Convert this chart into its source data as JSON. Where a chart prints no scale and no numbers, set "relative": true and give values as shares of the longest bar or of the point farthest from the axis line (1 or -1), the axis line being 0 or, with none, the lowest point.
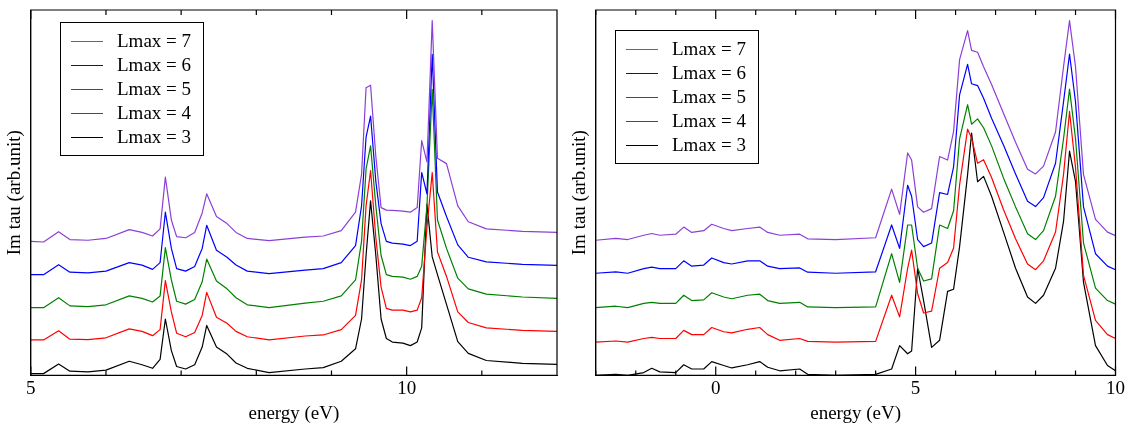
{
  "chart_data": [
    {
      "type": "line",
      "xlabel": "energy (eV)",
      "ylabel": "Im tau (arb.unit)",
      "relative": true,
      "legend": "top left",
      "xlim": [
        5,
        12
      ],
      "xticks": [
        5,
        {
          "value": 6,
          "label": null
        },
        {
          "value": 7,
          "label": null
        },
        {
          "value": 8,
          "label": null
        },
        {
          "value": 9,
          "label": null
        },
        10,
        {
          "value": 11,
          "label": null
        }
      ],
      "x": [
        5.0,
        5.17,
        5.37,
        5.52,
        5.76,
        6.0,
        6.31,
        6.48,
        6.62,
        6.72,
        6.79,
        6.87,
        6.94,
        7.06,
        7.18,
        7.28,
        7.34,
        7.47,
        7.61,
        7.73,
        7.88,
        8.17,
        8.65,
        8.89,
        9.13,
        9.32,
        9.4,
        9.46,
        9.52,
        9.59,
        9.66,
        9.73,
        9.81,
        9.95,
        10.05,
        10.14,
        10.2,
        10.27,
        10.34,
        10.41,
        10.53,
        10.68,
        10.82,
        11.06,
        11.54,
        12.0
      ],
      "series": [
        {
          "name": "Lmax = 7",
          "color": "#8c3fd6",
          "values": [
            0.378,
            0.376,
            0.405,
            0.383,
            0.381,
            0.386,
            0.411,
            0.403,
            0.393,
            0.413,
            0.559,
            0.438,
            0.391,
            0.388,
            0.403,
            0.458,
            0.512,
            0.448,
            0.428,
            0.403,
            0.386,
            0.38,
            0.39,
            0.393,
            0.408,
            0.46,
            0.567,
            0.811,
            0.818,
            0.617,
            0.473,
            0.466,
            0.465,
            0.463,
            0.46,
            0.473,
            0.662,
            0.602,
            1.0,
            0.612,
            0.597,
            0.478,
            0.433,
            0.413,
            0.406,
            0.403
          ]
        },
        {
          "name": "Lmax = 6",
          "color": "#0000ff",
          "values": [
            0.284,
            0.284,
            0.312,
            0.291,
            0.289,
            0.294,
            0.318,
            0.311,
            0.299,
            0.318,
            0.46,
            0.358,
            0.301,
            0.294,
            0.307,
            0.358,
            0.423,
            0.353,
            0.333,
            0.311,
            0.294,
            0.287,
            0.297,
            0.301,
            0.318,
            0.366,
            0.478,
            0.672,
            0.731,
            0.547,
            0.428,
            0.378,
            0.373,
            0.37,
            0.366,
            0.378,
            0.572,
            0.512,
            0.905,
            0.517,
            0.448,
            0.368,
            0.333,
            0.32,
            0.313,
            0.31
          ]
        },
        {
          "name": "Lmax = 5",
          "color": "#008000",
          "values": [
            0.191,
            0.191,
            0.219,
            0.196,
            0.194,
            0.199,
            0.224,
            0.217,
            0.207,
            0.224,
            0.36,
            0.269,
            0.209,
            0.201,
            0.214,
            0.264,
            0.328,
            0.266,
            0.244,
            0.219,
            0.199,
            0.191,
            0.204,
            0.209,
            0.224,
            0.269,
            0.378,
            0.582,
            0.647,
            0.478,
            0.338,
            0.284,
            0.279,
            0.277,
            0.271,
            0.279,
            0.308,
            0.478,
            0.806,
            0.438,
            0.358,
            0.274,
            0.244,
            0.229,
            0.221,
            0.217
          ]
        },
        {
          "name": "Lmax = 4",
          "color": "#ff0000",
          "values": [
            0.1,
            0.1,
            0.126,
            0.102,
            0.101,
            0.106,
            0.131,
            0.124,
            0.112,
            0.129,
            0.267,
            0.179,
            0.119,
            0.109,
            0.121,
            0.169,
            0.234,
            0.164,
            0.147,
            0.124,
            0.109,
            0.1,
            0.111,
            0.114,
            0.129,
            0.169,
            0.269,
            0.478,
            0.577,
            0.388,
            0.249,
            0.189,
            0.184,
            0.184,
            0.179,
            0.184,
            0.219,
            0.418,
            0.572,
            0.348,
            0.279,
            0.179,
            0.149,
            0.134,
            0.127,
            0.124
          ]
        },
        {
          "name": "Lmax = 3",
          "color": "#000000",
          "values": [
            0.005,
            0.005,
            0.032,
            0.012,
            0.01,
            0.015,
            0.04,
            0.03,
            0.02,
            0.045,
            0.159,
            0.07,
            0.025,
            0.018,
            0.03,
            0.08,
            0.141,
            0.08,
            0.06,
            0.035,
            0.02,
            0.008,
            0.018,
            0.022,
            0.04,
            0.075,
            0.159,
            0.338,
            0.492,
            0.338,
            0.159,
            0.104,
            0.094,
            0.091,
            0.084,
            0.094,
            0.134,
            0.483,
            0.334,
            0.284,
            0.2,
            0.095,
            0.062,
            0.042,
            0.034,
            0.031
          ]
        }
      ]
    },
    {
      "type": "line",
      "xlabel": "energy (eV)",
      "ylabel": "Im tau (arb.unit)",
      "relative": true,
      "legend": "top left",
      "xlim": [
        -3,
        10
      ],
      "xticks": [
        {
          "value": -3,
          "label": null
        },
        {
          "value": -2,
          "label": null
        },
        {
          "value": -1,
          "label": null
        },
        0,
        {
          "value": 1,
          "label": null
        },
        {
          "value": 2,
          "label": null
        },
        {
          "value": 3,
          "label": null
        },
        {
          "value": 4,
          "label": null
        },
        5,
        {
          "value": 6,
          "label": null
        },
        {
          "value": 7,
          "label": null
        },
        {
          "value": 8,
          "label": null
        },
        {
          "value": 9,
          "label": null
        },
        10
      ],
      "x": [
        -3,
        -2.5,
        -2.2,
        -1.8,
        -1.6,
        -1.4,
        -1.0,
        -0.8,
        -0.6,
        -0.3,
        -0.1,
        0.2,
        0.4,
        0.8,
        1.1,
        1.3,
        1.6,
        2.1,
        2.3,
        3.0,
        4.0,
        4.4,
        4.6,
        4.8,
        4.9,
        5.05,
        5.2,
        5.4,
        5.6,
        5.8,
        5.95,
        6.1,
        6.3,
        6.4,
        6.55,
        6.7,
        6.9,
        7.2,
        7.5,
        7.8,
        8.0,
        8.2,
        8.5,
        8.7,
        8.85,
        9.0,
        9.2,
        9.5,
        9.8,
        10
      ],
      "series": [
        {
          "name": "Lmax = 7",
          "color": "#8c3fd6",
          "values": [
            0.381,
            0.386,
            0.383,
            0.395,
            0.4,
            0.395,
            0.398,
            0.418,
            0.403,
            0.408,
            0.426,
            0.414,
            0.408,
            0.414,
            0.418,
            0.403,
            0.395,
            0.398,
            0.385,
            0.383,
            0.388,
            0.525,
            0.454,
            0.627,
            0.607,
            0.475,
            0.46,
            0.47,
            0.617,
            0.607,
            0.688,
            0.89,
            0.972,
            0.916,
            0.911,
            0.87,
            0.82,
            0.738,
            0.657,
            0.581,
            0.568,
            0.59,
            0.686,
            0.87,
            1.0,
            0.87,
            0.566,
            0.44,
            0.404,
            0.394
          ]
        },
        {
          "name": "Lmax = 6",
          "color": "#0000ff",
          "values": [
            0.288,
            0.292,
            0.288,
            0.301,
            0.305,
            0.301,
            0.301,
            0.323,
            0.308,
            0.311,
            0.331,
            0.318,
            0.314,
            0.323,
            0.323,
            0.308,
            0.301,
            0.303,
            0.291,
            0.288,
            0.292,
            0.424,
            0.358,
            0.536,
            0.505,
            0.383,
            0.363,
            0.373,
            0.515,
            0.51,
            0.588,
            0.791,
            0.877,
            0.822,
            0.817,
            0.781,
            0.725,
            0.649,
            0.568,
            0.491,
            0.476,
            0.501,
            0.598,
            0.771,
            0.906,
            0.771,
            0.475,
            0.343,
            0.308,
            0.298
          ]
        },
        {
          "name": "Lmax = 5",
          "color": "#008000",
          "values": [
            0.191,
            0.195,
            0.191,
            0.203,
            0.206,
            0.203,
            0.203,
            0.226,
            0.211,
            0.213,
            0.233,
            0.221,
            0.216,
            0.226,
            0.229,
            0.211,
            0.203,
            0.206,
            0.193,
            0.191,
            0.193,
            0.343,
            0.262,
            0.424,
            0.424,
            0.302,
            0.266,
            0.272,
            0.424,
            0.414,
            0.464,
            0.667,
            0.763,
            0.708,
            0.723,
            0.698,
            0.647,
            0.556,
            0.475,
            0.399,
            0.383,
            0.408,
            0.505,
            0.667,
            0.807,
            0.667,
            0.373,
            0.246,
            0.211,
            0.201
          ]
        },
        {
          "name": "Lmax = 4",
          "color": "#ff0000",
          "values": [
            0.094,
            0.097,
            0.094,
            0.104,
            0.107,
            0.104,
            0.104,
            0.127,
            0.115,
            0.115,
            0.135,
            0.123,
            0.12,
            0.13,
            0.135,
            0.115,
            0.099,
            0.104,
            0.096,
            0.094,
            0.096,
            0.226,
            0.165,
            0.302,
            0.353,
            0.231,
            0.176,
            0.181,
            0.302,
            0.318,
            0.359,
            0.537,
            0.694,
            0.669,
            0.598,
            0.608,
            0.558,
            0.467,
            0.385,
            0.314,
            0.298,
            0.323,
            0.404,
            0.566,
            0.744,
            0.586,
            0.282,
            0.155,
            0.115,
            0.104
          ]
        },
        {
          "name": "Lmax = 3",
          "color": "#000000",
          "values": [
            0,
            0.003,
            0,
            0.008,
            0.02,
            0.01,
            0.008,
            0.03,
            0.018,
            0.018,
            0.039,
            0.028,
            0.021,
            0.03,
            0.039,
            0.023,
            0.013,
            0.018,
            0.003,
            0,
            0.003,
            0.018,
            0.084,
            0.061,
            0.069,
            0.302,
            0.211,
            0.079,
            0.099,
            0.237,
            0.243,
            0.363,
            0.566,
            0.683,
            0.546,
            0.561,
            0.505,
            0.404,
            0.302,
            0.221,
            0.203,
            0.226,
            0.302,
            0.434,
            0.632,
            0.546,
            0.262,
            0.084,
            0.028,
            0.013
          ]
        }
      ]
    }
  ]
}
